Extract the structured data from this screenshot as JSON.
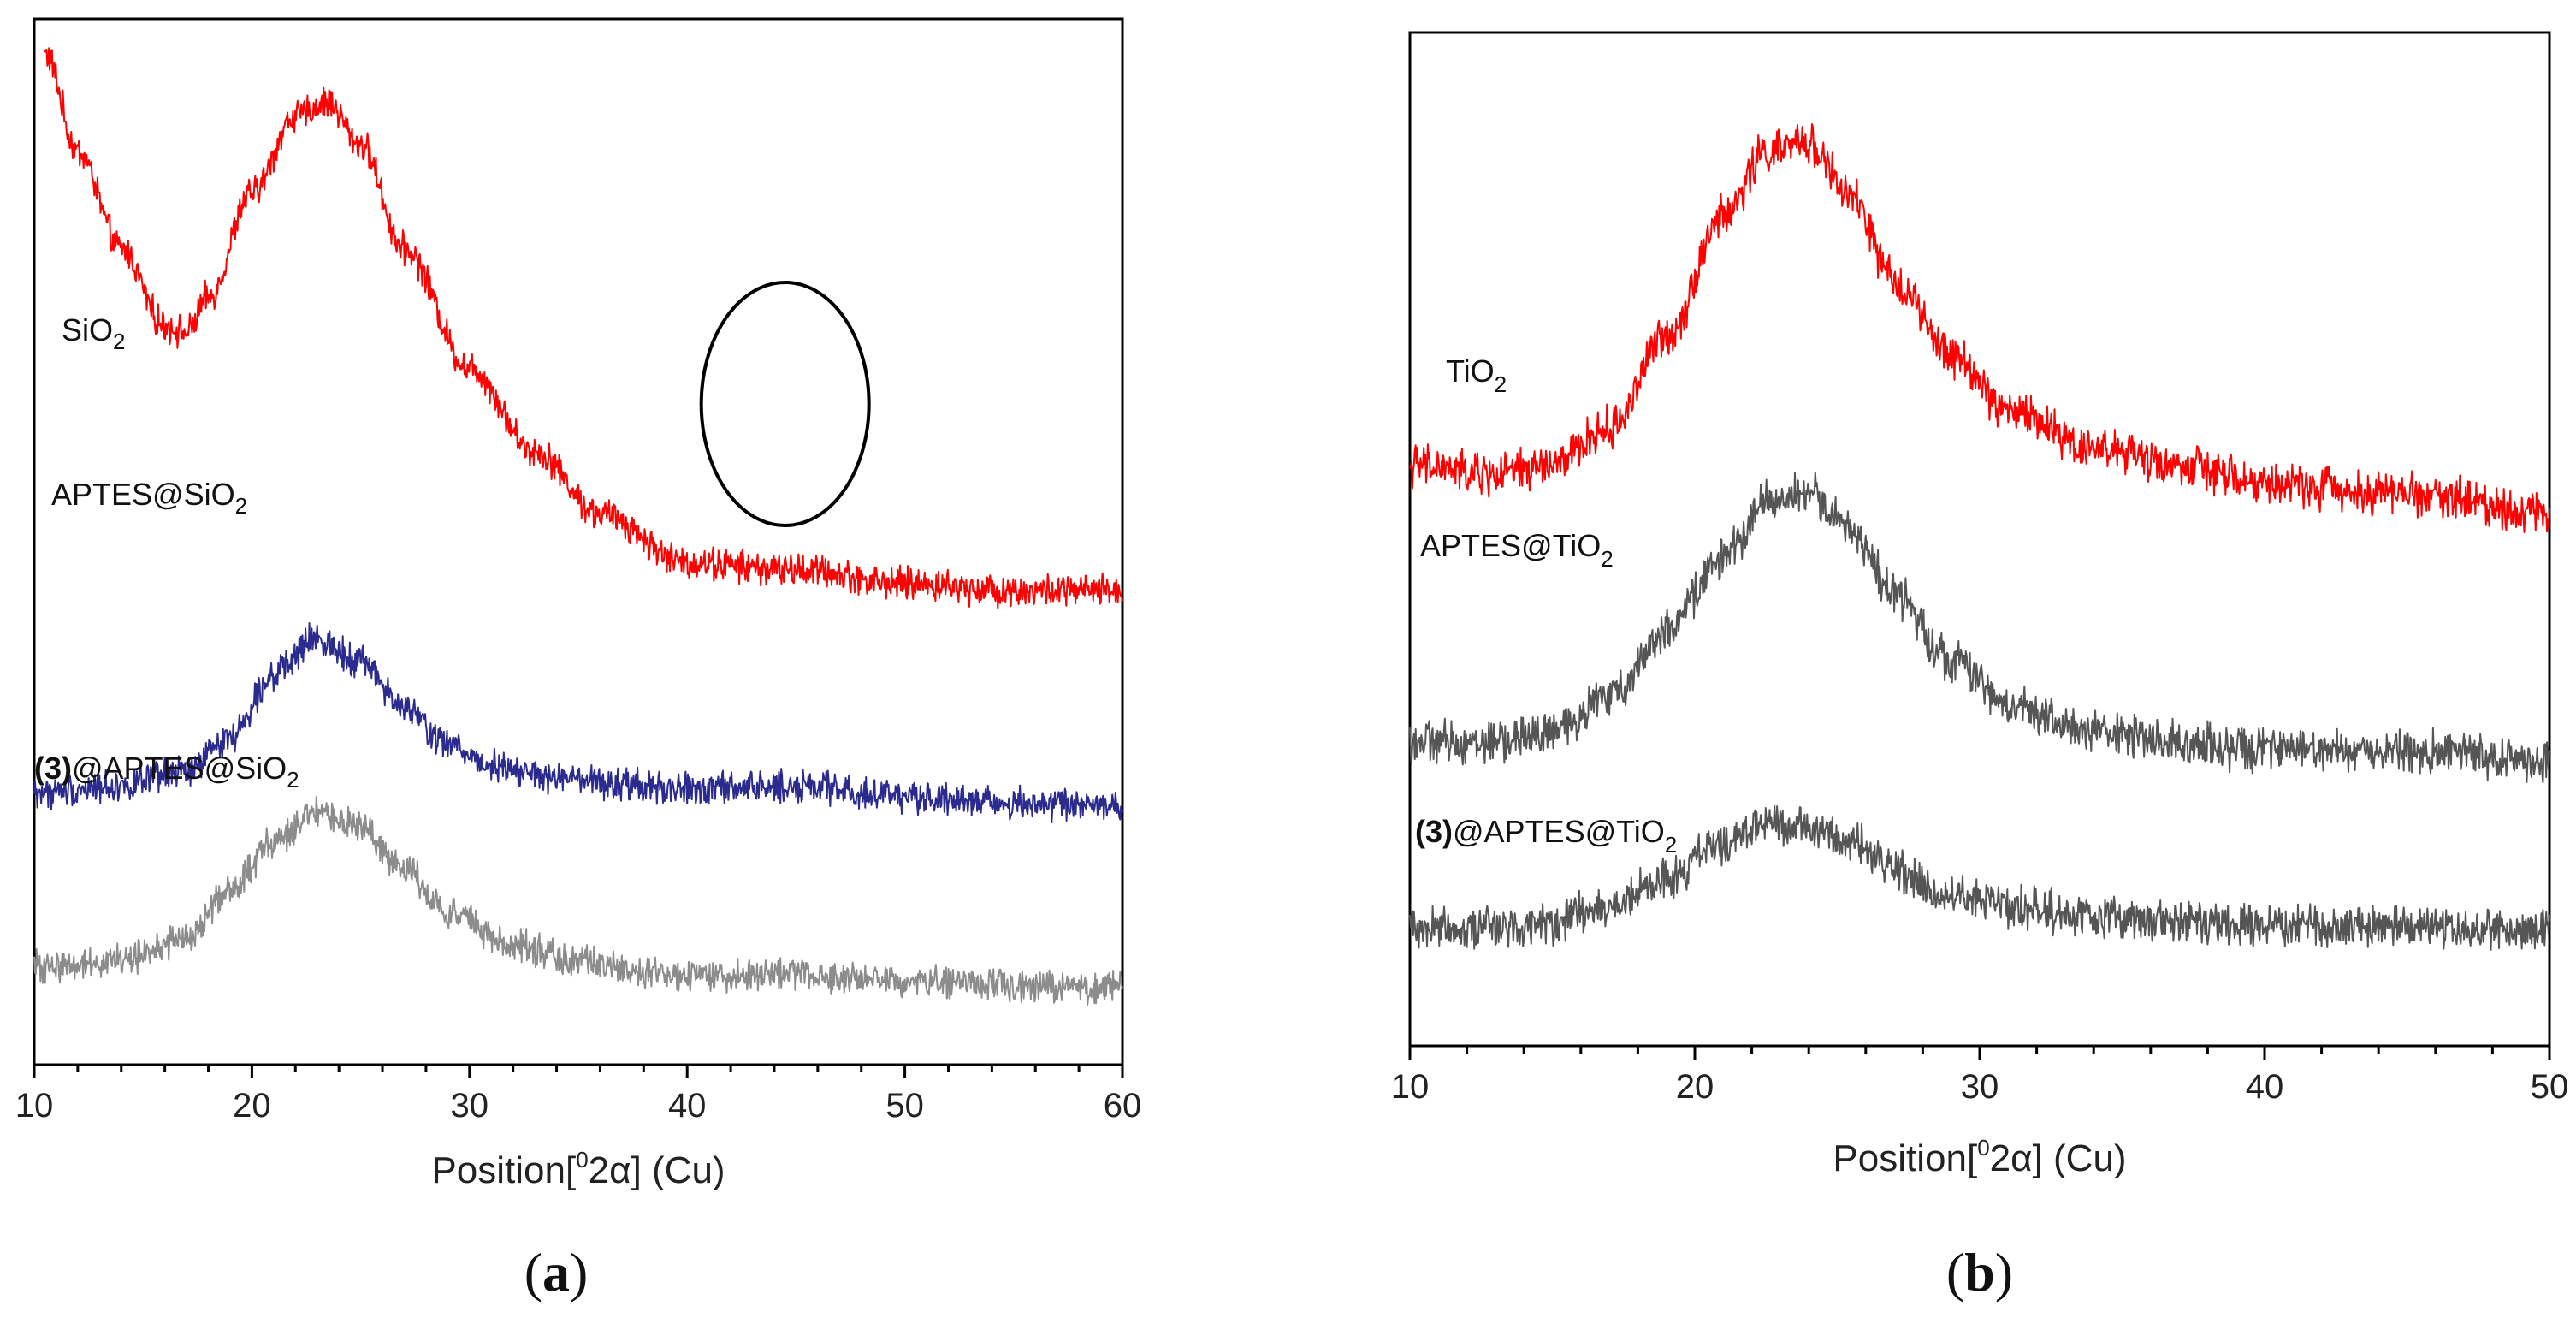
{
  "chart_data": [
    {
      "type": "line",
      "panel_label": "a",
      "xlabel": {
        "prefix": "Position[",
        "sup": "0",
        "mid": "2",
        "greek": "α",
        "suffix": "] (Cu)"
      },
      "xlim": [
        10,
        60
      ],
      "x_ticks": [
        10,
        20,
        30,
        40,
        50,
        60
      ],
      "ylabel": "",
      "y_ticks": [],
      "annotation": {
        "type": "circle",
        "center_x": 44.5,
        "label": ""
      },
      "series": [
        {
          "name": "SiO2",
          "label_main": "SiO",
          "label_sub": "2",
          "label_bold_prefix": "",
          "color": "#ff0000",
          "x": [
            10.5,
            12,
            14,
            16,
            17,
            18,
            20,
            22,
            23.5,
            25,
            27,
            30,
            33,
            36,
            40,
            45,
            50,
            55,
            60
          ],
          "y": [
            1.0,
            0.86,
            0.72,
            0.61,
            0.6,
            0.65,
            0.8,
            0.91,
            0.93,
            0.87,
            0.72,
            0.55,
            0.43,
            0.34,
            0.27,
            0.26,
            0.24,
            0.23,
            0.23
          ]
        },
        {
          "name": "APTES@SiO2",
          "label_main": "APTES@SiO",
          "label_sub": "2",
          "label_bold_prefix": "",
          "color": "#2b2b8f",
          "x": [
            10,
            14,
            17,
            19,
            21,
            23,
            25,
            27,
            29,
            31,
            34,
            37,
            40,
            45,
            50,
            55,
            60
          ],
          "y": [
            -0.06,
            -0.05,
            -0.03,
            0.02,
            0.11,
            0.16,
            0.13,
            0.06,
            0.01,
            -0.02,
            -0.04,
            -0.05,
            -0.055,
            -0.05,
            -0.065,
            -0.075,
            -0.08
          ]
        },
        {
          "name": "(3)@APTES@SiO2",
          "label_main": "@APTES@SiO",
          "label_sub": "2",
          "label_bold_prefix": "(3)",
          "color": "#8c8c8c",
          "x": [
            10,
            14,
            17,
            19,
            21,
            23,
            25,
            27,
            29,
            32,
            35,
            38,
            40,
            45,
            50,
            55,
            60
          ],
          "y": [
            -0.31,
            -0.3,
            -0.27,
            -0.2,
            -0.13,
            -0.09,
            -0.11,
            -0.17,
            -0.23,
            -0.28,
            -0.3,
            -0.32,
            -0.325,
            -0.32,
            -0.33,
            -0.335,
            -0.34
          ]
        }
      ]
    },
    {
      "type": "line",
      "panel_label": "b",
      "xlabel": {
        "prefix": "Position[",
        "sup": "0",
        "mid": "2",
        "greek": "α",
        "suffix": "] (Cu)"
      },
      "xlim": [
        10,
        50
      ],
      "x_ticks": [
        10,
        20,
        30,
        40,
        50
      ],
      "ylabel": "",
      "y_ticks": [],
      "series": [
        {
          "name": "TiO2",
          "label_main": "TiO",
          "label_sub": "2",
          "label_bold_prefix": "",
          "color": "#ff0000",
          "x": [
            10,
            13,
            15,
            17,
            19,
            21,
            22.5,
            24,
            25.5,
            27,
            29,
            31,
            34,
            37,
            40,
            45,
            50
          ],
          "y": [
            0.58,
            0.57,
            0.58,
            0.62,
            0.72,
            0.85,
            0.92,
            0.93,
            0.87,
            0.78,
            0.7,
            0.64,
            0.6,
            0.58,
            0.56,
            0.55,
            0.53
          ]
        },
        {
          "name": "APTES@TiO2",
          "label_main": "APTES@TiO",
          "label_sub": "2",
          "label_bold_prefix": "",
          "color": "#555555",
          "x": [
            10,
            13,
            15,
            17,
            19,
            21,
            22.5,
            24,
            25.5,
            27,
            29,
            31,
            34,
            37,
            40,
            45,
            50
          ],
          "y": [
            0.28,
            0.28,
            0.29,
            0.33,
            0.4,
            0.48,
            0.54,
            0.55,
            0.51,
            0.44,
            0.37,
            0.32,
            0.29,
            0.28,
            0.27,
            0.27,
            0.26
          ]
        },
        {
          "name": "(3)@APTES@TiO2",
          "label_main": "@APTES@TiO",
          "label_sub": "2",
          "label_bold_prefix": "(3)",
          "color": "#555555",
          "x": [
            10,
            13,
            15,
            17,
            19,
            21,
            22.5,
            24,
            25.5,
            27,
            29,
            31,
            34,
            37,
            40,
            45,
            50
          ],
          "y": [
            0.08,
            0.08,
            0.085,
            0.1,
            0.13,
            0.17,
            0.19,
            0.19,
            0.17,
            0.14,
            0.115,
            0.1,
            0.09,
            0.085,
            0.08,
            0.08,
            0.075
          ]
        }
      ]
    }
  ]
}
